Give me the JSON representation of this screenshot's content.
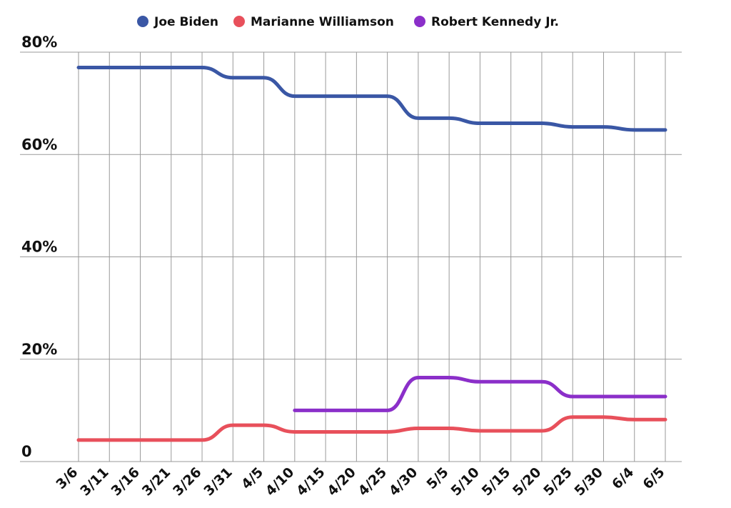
{
  "chart_data": {
    "type": "line",
    "title": "",
    "xlabel": "",
    "ylabel": "",
    "ylim": [
      0,
      80
    ],
    "grid": true,
    "legend_position": "top-center",
    "categories": [
      "3/6",
      "3/11",
      "3/16",
      "3/21",
      "3/26",
      "3/31",
      "4/5",
      "4/10",
      "4/15",
      "4/20",
      "4/25",
      "4/30",
      "5/5",
      "5/10",
      "5/15",
      "5/20",
      "5/25",
      "5/30",
      "6/4",
      "6/5"
    ],
    "y_ticks": [
      {
        "value": 0,
        "label": "0"
      },
      {
        "value": 20,
        "label": "20%"
      },
      {
        "value": 40,
        "label": "40%"
      },
      {
        "value": 60,
        "label": "60%"
      },
      {
        "value": 80,
        "label": "80%"
      }
    ],
    "series": [
      {
        "name": "Joe Biden",
        "color": "#3a57a5",
        "values": [
          77,
          77,
          77,
          77,
          77,
          75,
          75,
          71.4,
          71.4,
          71.4,
          71.4,
          67.1,
          67.1,
          66.1,
          66.1,
          66.1,
          65.4,
          65.4,
          64.8,
          64.8
        ]
      },
      {
        "name": "Marianne Williamson",
        "color": "#e8505b",
        "values": [
          4.2,
          4.2,
          4.2,
          4.2,
          4.2,
          7.1,
          7.1,
          5.8,
          5.8,
          5.8,
          5.8,
          6.5,
          6.5,
          6,
          6,
          6,
          8.7,
          8.7,
          8.2,
          8.2
        ]
      },
      {
        "name": "Robert Kennedy Jr.",
        "color": "#8b2fc9",
        "values": [
          null,
          null,
          null,
          null,
          null,
          null,
          null,
          10,
          10,
          10,
          10,
          16.4,
          16.4,
          15.6,
          15.6,
          15.6,
          12.7,
          12.7,
          12.7,
          12.7
        ]
      }
    ]
  }
}
